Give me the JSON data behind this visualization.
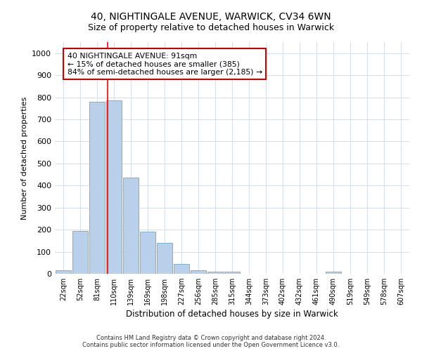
{
  "title1": "40, NIGHTINGALE AVENUE, WARWICK, CV34 6WN",
  "title2": "Size of property relative to detached houses in Warwick",
  "xlabel": "Distribution of detached houses by size in Warwick",
  "ylabel": "Number of detached properties",
  "categories": [
    "22sqm",
    "52sqm",
    "81sqm",
    "110sqm",
    "139sqm",
    "169sqm",
    "198sqm",
    "227sqm",
    "256sqm",
    "285sqm",
    "315sqm",
    "344sqm",
    "373sqm",
    "402sqm",
    "432sqm",
    "461sqm",
    "490sqm",
    "519sqm",
    "549sqm",
    "578sqm",
    "607sqm"
  ],
  "values": [
    15,
    195,
    780,
    785,
    435,
    190,
    140,
    45,
    15,
    10,
    10,
    0,
    0,
    0,
    0,
    0,
    10,
    0,
    0,
    0,
    0
  ],
  "bar_color": "#b8d0ea",
  "bar_edge_color": "#7aafd4",
  "red_line_x": 2.62,
  "annotation_text": "40 NIGHTINGALE AVENUE: 91sqm\n← 15% of detached houses are smaller (385)\n84% of semi-detached houses are larger (2,185) →",
  "annotation_box_color": "#ffffff",
  "annotation_box_edge": "#cc0000",
  "ylim": [
    0,
    1050
  ],
  "yticks": [
    0,
    100,
    200,
    300,
    400,
    500,
    600,
    700,
    800,
    900,
    1000
  ],
  "footnote1": "Contains HM Land Registry data © Crown copyright and database right 2024.",
  "footnote2": "Contains public sector information licensed under the Open Government Licence v3.0.",
  "background_color": "#ffffff",
  "grid_color": "#ccd8e8"
}
